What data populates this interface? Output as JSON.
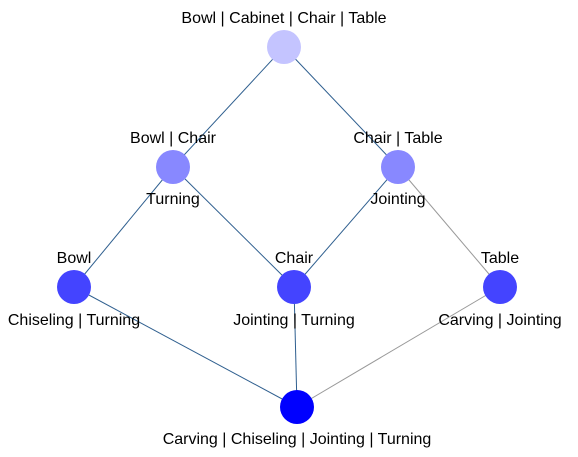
{
  "diagram": {
    "type": "concept-lattice",
    "nodes": [
      {
        "id": "top",
        "color": "#c4c4ff",
        "objects": "Bowl | Cabinet | Chair | Table",
        "attributes": ""
      },
      {
        "id": "bc",
        "color": "#8888ff",
        "objects": "Bowl | Chair",
        "attributes": "Turning"
      },
      {
        "id": "ct",
        "color": "#8888ff",
        "objects": "Chair | Table",
        "attributes": "Jointing"
      },
      {
        "id": "bowl",
        "color": "#4444ff",
        "objects": "Bowl",
        "attributes": "Chiseling | Turning"
      },
      {
        "id": "chair",
        "color": "#4444ff",
        "objects": "Chair",
        "attributes": "Jointing | Turning"
      },
      {
        "id": "table",
        "color": "#4444ff",
        "objects": "Table",
        "attributes": "Carving | Jointing"
      },
      {
        "id": "bottom",
        "color": "#0000ff",
        "objects": "",
        "attributes": "Carving | Chiseling | Jointing | Turning"
      }
    ],
    "edges": [
      {
        "from": "top",
        "to": "bc",
        "color": "#2f5f8f"
      },
      {
        "from": "top",
        "to": "ct",
        "color": "#2f5f8f"
      },
      {
        "from": "bc",
        "to": "bowl",
        "color": "#2f5f8f"
      },
      {
        "from": "bc",
        "to": "chair",
        "color": "#2f5f8f"
      },
      {
        "from": "ct",
        "to": "chair",
        "color": "#2f5f8f"
      },
      {
        "from": "ct",
        "to": "table",
        "color": "#999999"
      },
      {
        "from": "bowl",
        "to": "bottom",
        "color": "#2f5f8f"
      },
      {
        "from": "chair",
        "to": "bottom",
        "color": "#2f5f8f"
      },
      {
        "from": "table",
        "to": "bottom",
        "color": "#999999"
      }
    ]
  }
}
